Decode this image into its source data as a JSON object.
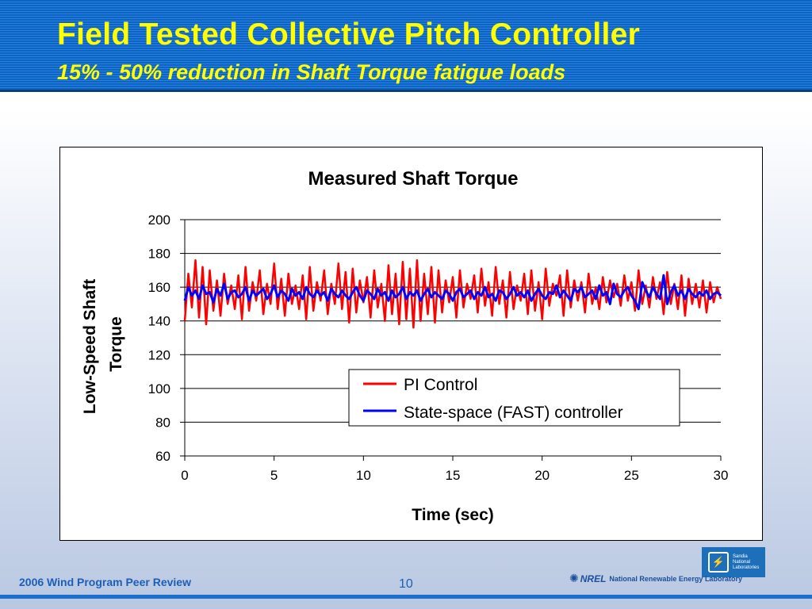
{
  "slide": {
    "title": "Field Tested Collective Pitch Controller",
    "subtitle": "15% - 50% reduction in Shaft Torque fatigue loads",
    "footer_text": "2006 Wind Program Peer Review",
    "page_number": "10",
    "title_color": "#ffff00",
    "header_color": "#0b63c4"
  },
  "logos": {
    "sandia": {
      "icon": "sandia-thunderbird-icon",
      "lines": [
        "Sandia",
        "National",
        "Laboratories"
      ]
    },
    "nrel": {
      "mark": "NREL",
      "text": "National Renewable Energy Laboratory"
    }
  },
  "chart_data": {
    "type": "line",
    "title": "Measured Shaft Torque",
    "xlabel": "Time (sec)",
    "ylabel_lines": [
      "Low-Speed Shaft",
      "Torque"
    ],
    "xlim": [
      0,
      30
    ],
    "ylim": [
      60,
      200
    ],
    "xticks": [
      0,
      5,
      10,
      15,
      20,
      25,
      30
    ],
    "yticks": [
      60,
      80,
      100,
      120,
      140,
      160,
      180,
      200
    ],
    "grid": "horizontal",
    "legend_position": "lower-right",
    "series": [
      {
        "name": "PI Control",
        "color": "#ff0000",
        "x": [
          0,
          0.2,
          0.4,
          0.6,
          0.8,
          1,
          1.2,
          1.4,
          1.6,
          1.8,
          2,
          2.2,
          2.4,
          2.6,
          2.8,
          3,
          3.2,
          3.4,
          3.6,
          3.8,
          4,
          4.2,
          4.4,
          4.6,
          4.8,
          5,
          5.2,
          5.4,
          5.6,
          5.8,
          6,
          6.2,
          6.4,
          6.6,
          6.8,
          7,
          7.2,
          7.4,
          7.6,
          7.8,
          8,
          8.2,
          8.4,
          8.6,
          8.8,
          9,
          9.2,
          9.4,
          9.6,
          9.8,
          10,
          10.2,
          10.4,
          10.6,
          10.8,
          11,
          11.2,
          11.4,
          11.6,
          11.8,
          12,
          12.2,
          12.4,
          12.6,
          12.8,
          13,
          13.2,
          13.4,
          13.6,
          13.8,
          14,
          14.2,
          14.4,
          14.6,
          14.8,
          15,
          15.2,
          15.4,
          15.6,
          15.8,
          16,
          16.2,
          16.4,
          16.6,
          16.8,
          17,
          17.2,
          17.4,
          17.6,
          17.8,
          18,
          18.2,
          18.4,
          18.6,
          18.8,
          19,
          19.2,
          19.4,
          19.6,
          19.8,
          20,
          20.2,
          20.4,
          20.6,
          20.8,
          21,
          21.2,
          21.4,
          21.6,
          21.8,
          22,
          22.2,
          22.4,
          22.6,
          22.8,
          23,
          23.2,
          23.4,
          23.6,
          23.8,
          24,
          24.2,
          24.4,
          24.6,
          24.8,
          25,
          25.2,
          25.4,
          25.6,
          25.8,
          26,
          26.2,
          26.4,
          26.6,
          26.8,
          27,
          27.2,
          27.4,
          27.6,
          27.8,
          28,
          28.2,
          28.4,
          28.6,
          28.8,
          29,
          29.2,
          29.4,
          29.6,
          29.8,
          30
        ],
        "values": [
          140,
          168,
          148,
          176,
          142,
          172,
          138,
          170,
          146,
          164,
          143,
          168,
          150,
          161,
          147,
          167,
          141,
          172,
          146,
          163,
          152,
          170,
          144,
          162,
          150,
          174,
          147,
          165,
          143,
          168,
          150,
          161,
          147,
          167,
          141,
          172,
          146,
          163,
          152,
          170,
          144,
          162,
          150,
          174,
          147,
          169,
          139,
          171,
          145,
          164,
          151,
          166,
          142,
          170,
          148,
          162,
          140,
          173,
          144,
          168,
          138,
          175,
          141,
          171,
          136,
          176,
          140,
          168,
          144,
          172,
          139,
          170,
          145,
          164,
          151,
          166,
          142,
          170,
          148,
          162,
          153,
          167,
          145,
          171,
          149,
          163,
          143,
          172,
          150,
          164,
          142,
          169,
          147,
          161,
          152,
          168,
          144,
          170,
          146,
          163,
          141,
          171,
          149,
          162,
          155,
          167,
          143,
          170,
          148,
          164,
          152,
          163,
          145,
          168,
          150,
          160,
          147,
          166,
          151,
          164,
          154,
          162,
          149,
          167,
          152,
          163,
          146,
          170,
          150,
          161,
          148,
          166,
          153,
          163,
          144,
          169,
          150,
          162,
          147,
          167,
          143,
          165,
          150,
          162,
          148,
          164,
          145,
          163,
          151,
          160,
          153
        ]
      },
      {
        "name": "State-space (FAST) controller",
        "color": "#0000ff",
        "x": [
          0,
          0.2,
          0.4,
          0.6,
          0.8,
          1,
          1.2,
          1.4,
          1.6,
          1.8,
          2,
          2.2,
          2.4,
          2.6,
          2.8,
          3,
          3.2,
          3.4,
          3.6,
          3.8,
          4,
          4.2,
          4.4,
          4.6,
          4.8,
          5,
          5.2,
          5.4,
          5.6,
          5.8,
          6,
          6.2,
          6.4,
          6.6,
          6.8,
          7,
          7.2,
          7.4,
          7.6,
          7.8,
          8,
          8.2,
          8.4,
          8.6,
          8.8,
          9,
          9.2,
          9.4,
          9.6,
          9.8,
          10,
          10.2,
          10.4,
          10.6,
          10.8,
          11,
          11.2,
          11.4,
          11.6,
          11.8,
          12,
          12.2,
          12.4,
          12.6,
          12.8,
          13,
          13.2,
          13.4,
          13.6,
          13.8,
          14,
          14.2,
          14.4,
          14.6,
          14.8,
          15,
          15.2,
          15.4,
          15.6,
          15.8,
          16,
          16.2,
          16.4,
          16.6,
          16.8,
          17,
          17.2,
          17.4,
          17.6,
          17.8,
          18,
          18.2,
          18.4,
          18.6,
          18.8,
          19,
          19.2,
          19.4,
          19.6,
          19.8,
          20,
          20.2,
          20.4,
          20.6,
          20.8,
          21,
          21.2,
          21.4,
          21.6,
          21.8,
          22,
          22.2,
          22.4,
          22.6,
          22.8,
          23,
          23.2,
          23.4,
          23.6,
          23.8,
          24,
          24.2,
          24.4,
          24.6,
          24.8,
          25,
          25.2,
          25.4,
          25.6,
          25.8,
          26,
          26.2,
          26.4,
          26.6,
          26.8,
          27,
          27.2,
          27.4,
          27.6,
          27.8,
          28,
          28.2,
          28.4,
          28.6,
          28.8,
          29,
          29.2,
          29.4,
          29.6,
          29.8,
          30
        ],
        "values": [
          152,
          160,
          155,
          158,
          153,
          161,
          156,
          157,
          151,
          159,
          155,
          162,
          153,
          157,
          158,
          154,
          156,
          160,
          152,
          158,
          155,
          157,
          159,
          153,
          156,
          161,
          154,
          158,
          156,
          152,
          159,
          155,
          157,
          153,
          160,
          156,
          154,
          158,
          155,
          157,
          152,
          159,
          156,
          154,
          158,
          155,
          153,
          157,
          160,
          155,
          152,
          158,
          156,
          153,
          159,
          155,
          157,
          152,
          158,
          154,
          156,
          160,
          153,
          157,
          155,
          158,
          152,
          156,
          159,
          154,
          157,
          155,
          153,
          158,
          156,
          152,
          157,
          159,
          154,
          156,
          158,
          153,
          157,
          155,
          160,
          154,
          156,
          152,
          158,
          157,
          153,
          156,
          160,
          155,
          157,
          154,
          158,
          152,
          156,
          159,
          155,
          153,
          157,
          156,
          161,
          154,
          158,
          155,
          152,
          159,
          157,
          160,
          154,
          156,
          158,
          153,
          161,
          155,
          157,
          150,
          162,
          156,
          154,
          158,
          160,
          155,
          152,
          147,
          163,
          158,
          154,
          160,
          156,
          153,
          167,
          150,
          157,
          161,
          155,
          158,
          153,
          159,
          156,
          154,
          157,
          155,
          158,
          153,
          156,
          157,
          155
        ]
      }
    ]
  }
}
